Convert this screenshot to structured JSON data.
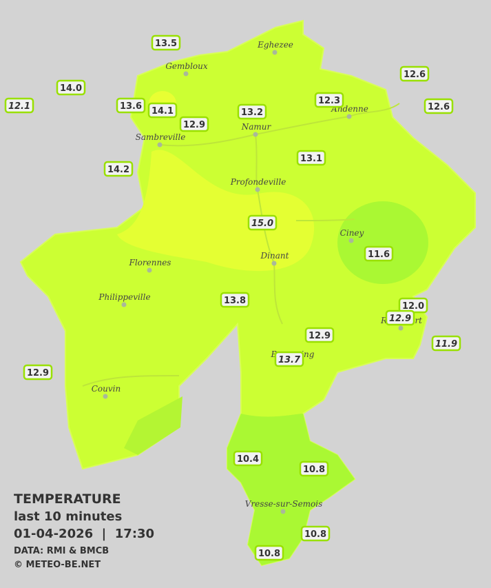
{
  "legend": {
    "title": "TEMPERATURE",
    "subtitle": "last 10 minutes",
    "datetime": "01-04-2026  |  17:30",
    "source": "DATA: RMI & BMCB",
    "copyright": "© METEO-BE.NET"
  },
  "cities": [
    "Eghezee",
    "Gembloux",
    "Andenne",
    "Namur",
    "Sambreville",
    "Profondeville",
    "Ciney",
    "Dinant",
    "Florennes",
    "Philippeville",
    "Rochefort",
    "Beauraing",
    "Couvin",
    "Vresse-sur-Semois"
  ],
  "stations": [
    {
      "value": "13.5",
      "italic": false
    },
    {
      "value": "14.0",
      "italic": false
    },
    {
      "value": "12.1",
      "italic": true
    },
    {
      "value": "13.6",
      "italic": false
    },
    {
      "value": "14.1",
      "italic": false
    },
    {
      "value": "12.9",
      "italic": false
    },
    {
      "value": "13.2",
      "italic": false
    },
    {
      "value": "12.3",
      "italic": false
    },
    {
      "value": "12.6",
      "italic": false
    },
    {
      "value": "12.6",
      "italic": false
    },
    {
      "value": "14.2",
      "italic": false
    },
    {
      "value": "13.1",
      "italic": false
    },
    {
      "value": "15.0",
      "italic": true
    },
    {
      "value": "11.6",
      "italic": false
    },
    {
      "value": "13.8",
      "italic": false
    },
    {
      "value": "12.0",
      "italic": false
    },
    {
      "value": "12.9",
      "italic": true
    },
    {
      "value": "11.9",
      "italic": true
    },
    {
      "value": "12.9",
      "italic": false
    },
    {
      "value": "13.7",
      "italic": true
    },
    {
      "value": "12.9",
      "italic": false
    },
    {
      "value": "10.4",
      "italic": false
    },
    {
      "value": "10.8",
      "italic": false
    },
    {
      "value": "10.8",
      "italic": false
    },
    {
      "value": "10.8",
      "italic": false
    }
  ]
}
